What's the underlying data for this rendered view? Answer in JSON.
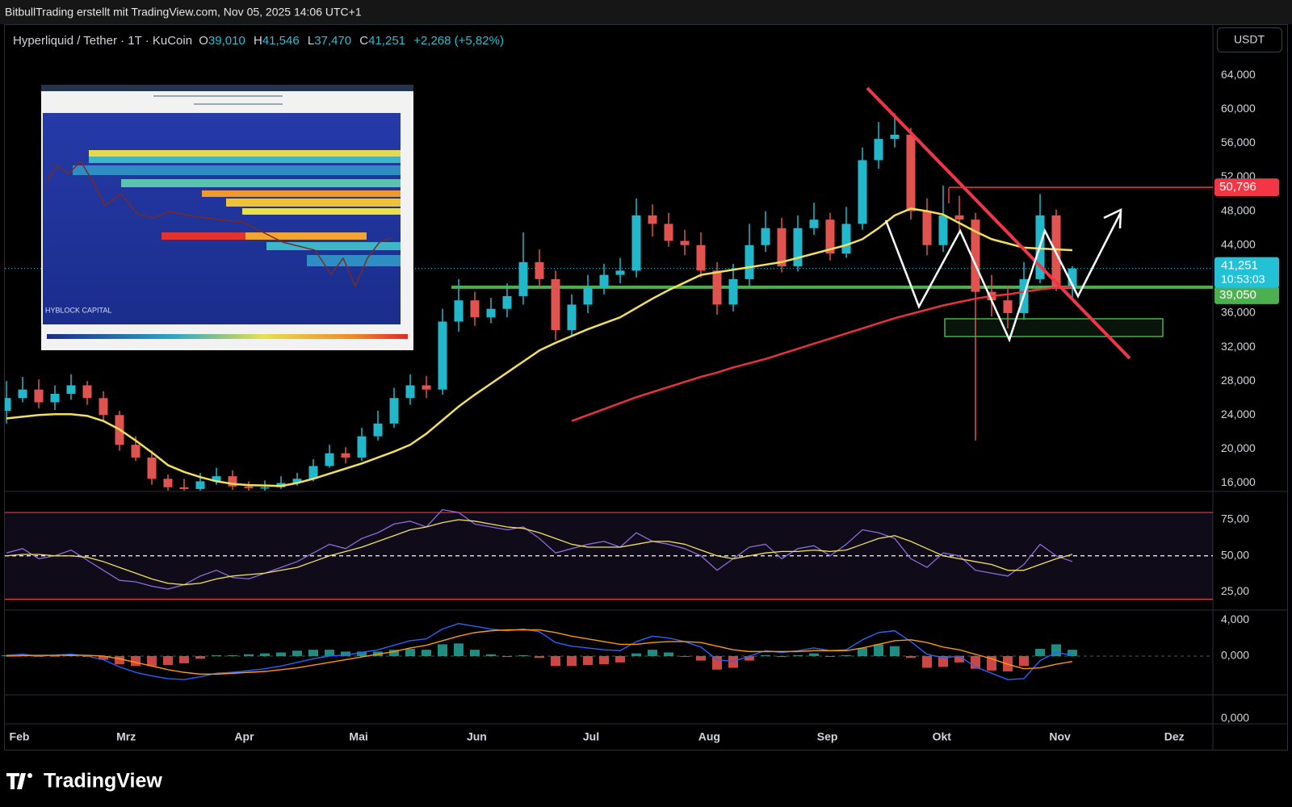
{
  "attribution": "BitbullTrading erstellt mit TradingView.com, Nov 05, 2025 14:06 UTC+1",
  "watermark": "TradingView",
  "inset": {
    "caption": "HYBLOCK CAPITAL"
  },
  "time_axis": {
    "labels": [
      "Feb",
      "Mrz",
      "Apr",
      "Mai",
      "Jun",
      "Jul",
      "Aug",
      "Sep",
      "Okt",
      "Nov",
      "Dez"
    ]
  },
  "chart_data": [
    {
      "type": "candlestick",
      "symbol": "Hyperliquid / Tether · 1T · KuCoin",
      "ohlc_header": [
        {
          "key": "O",
          "value": "39,010"
        },
        {
          "key": "H",
          "value": "41,546"
        },
        {
          "key": "L",
          "value": "37,470"
        },
        {
          "key": "C",
          "value": "41,251"
        }
      ],
      "change": "+2,268 (+5,82%)",
      "currency": "USDT",
      "up_color": "#22b8cc",
      "down_color": "#e0534f",
      "ylim": [
        15100,
        70000
      ],
      "yticks": [
        {
          "value": 16000,
          "label": "16,000"
        },
        {
          "value": 20000,
          "label": "20,000"
        },
        {
          "value": 24000,
          "label": "24,000"
        },
        {
          "value": 28000,
          "label": "28,000"
        },
        {
          "value": 32000,
          "label": "32,000"
        },
        {
          "value": 36000,
          "label": "36,000"
        },
        {
          "value": 40000,
          "label": "40,000"
        },
        {
          "value": 44000,
          "label": "44,000"
        },
        {
          "value": 48000,
          "label": "48,000"
        },
        {
          "value": 52000,
          "label": "52,000"
        },
        {
          "value": 56000,
          "label": "56,000"
        },
        {
          "value": 60000,
          "label": "60,000"
        },
        {
          "value": 64000,
          "label": "64,000"
        }
      ],
      "grid": false,
      "open": [
        24500,
        26000,
        27000,
        25500,
        26500,
        27500,
        26000,
        24000,
        20500,
        19000,
        16500,
        15500,
        15300,
        16200,
        16800,
        15600,
        15400,
        15500,
        16000,
        16500,
        18000,
        19500,
        19000,
        21500,
        23000,
        26000,
        27500,
        27000,
        35000,
        37500,
        35500,
        36500,
        38000,
        42000,
        40000,
        34000,
        37000,
        39000,
        40500,
        41000,
        47500,
        46500,
        44500,
        44000,
        41000,
        37000,
        40000,
        44000,
        46000,
        41500,
        46000,
        47000,
        43000,
        46500,
        54000,
        56500,
        57000,
        48000,
        44000,
        47500,
        47000,
        38500,
        37500,
        36000,
        40000,
        47500,
        39010
      ],
      "high": [
        28000,
        28500,
        28200,
        27500,
        28800,
        28000,
        26800,
        24500,
        21500,
        19800,
        17000,
        16500,
        17200,
        17800,
        17500,
        16200,
        16300,
        16800,
        17200,
        18800,
        20500,
        20200,
        22500,
        24500,
        27200,
        28800,
        28600,
        36500,
        40000,
        38500,
        37800,
        39500,
        45500,
        43500,
        41000,
        38200,
        40500,
        41800,
        42500,
        49500,
        48800,
        47800,
        45800,
        45500,
        42000,
        41800,
        46500,
        48000,
        47200,
        47500,
        49000,
        47800,
        48500,
        55500,
        58500,
        59500,
        57800,
        49500,
        51000,
        49800,
        47800,
        40500,
        39200,
        42000,
        50000,
        48200,
        41546
      ],
      "low": [
        23000,
        25500,
        24800,
        24600,
        25800,
        25200,
        23200,
        19800,
        18600,
        15800,
        15000,
        14800,
        15000,
        15800,
        15200,
        15000,
        14900,
        15300,
        15700,
        16200,
        17800,
        18300,
        18600,
        21000,
        22500,
        25200,
        26000,
        26400,
        33800,
        34500,
        34800,
        35500,
        37000,
        39000,
        32800,
        33200,
        36000,
        38200,
        39500,
        40200,
        45000,
        43800,
        42800,
        40200,
        35800,
        36200,
        39200,
        43200,
        40800,
        40900,
        45200,
        42200,
        42500,
        45800,
        53000,
        55500,
        47000,
        42800,
        43200,
        45800,
        21000,
        35600,
        34200,
        35200,
        39500,
        38600,
        37470
      ],
      "close": [
        26000,
        27000,
        25500,
        26500,
        27500,
        26000,
        24000,
        20500,
        19000,
        16500,
        15500,
        15300,
        16200,
        16800,
        15600,
        15400,
        15500,
        16000,
        16500,
        18000,
        19500,
        19000,
        21500,
        23000,
        26000,
        27500,
        27000,
        35000,
        37500,
        35500,
        36500,
        38000,
        42000,
        40000,
        34000,
        37000,
        39000,
        40500,
        41000,
        47500,
        46500,
        44500,
        44000,
        41000,
        37000,
        40000,
        44000,
        46000,
        41500,
        46000,
        47000,
        43000,
        46500,
        54000,
        56500,
        57000,
        48000,
        44000,
        47500,
        47000,
        38500,
        37500,
        36000,
        40000,
        47500,
        39010,
        41251
      ],
      "overlays": [
        {
          "color": "#f3e05a",
          "values": [
            23600,
            23800,
            24000,
            24100,
            24100,
            23900,
            23300,
            22300,
            21000,
            19600,
            18100,
            17300,
            16700,
            16200,
            15900,
            15750,
            15700,
            15650,
            16000,
            16500,
            17100,
            17700,
            18300,
            19000,
            19700,
            20500,
            21800,
            23400,
            25000,
            26400,
            27700,
            29000,
            30300,
            31600,
            32500,
            33300,
            34100,
            34800,
            35500,
            36600,
            37700,
            38700,
            39600,
            40500,
            40800,
            41100,
            41400,
            41700,
            42000,
            42500,
            43000,
            43500,
            44000,
            44700,
            46000,
            47500,
            48300,
            48000,
            47600,
            46600,
            45600,
            44700,
            44200,
            43700,
            43600,
            43500,
            43400
          ]
        },
        {
          "color": "#e8333f",
          "values": [
            null,
            null,
            null,
            null,
            null,
            null,
            null,
            null,
            null,
            null,
            null,
            null,
            null,
            null,
            null,
            null,
            null,
            null,
            null,
            null,
            null,
            null,
            null,
            null,
            null,
            null,
            null,
            null,
            null,
            null,
            null,
            null,
            null,
            null,
            null,
            23300,
            24000,
            24700,
            25400,
            26100,
            26700,
            27300,
            27900,
            28500,
            29000,
            29600,
            30100,
            30600,
            31200,
            31800,
            32400,
            33000,
            33600,
            34200,
            34800,
            35400,
            35900,
            36400,
            36900,
            37300,
            37700,
            38000,
            38200,
            38500,
            38800,
            39000,
            39100
          ]
        }
      ],
      "price_lines": [
        {
          "value": 50796,
          "label": "50,796",
          "color": "#f23645"
        },
        {
          "value": 39050,
          "label": "39,050",
          "color": "#4caf50"
        }
      ],
      "last_price": {
        "value": 41251,
        "label": "41,251",
        "countdown": "10:53:03",
        "color": "#22c1d6"
      }
    },
    {
      "type": "rsi",
      "ylim": [
        13,
        94
      ],
      "yticks": [
        {
          "value": 25,
          "label": "25,00"
        },
        {
          "value": 50,
          "label": "50,00"
        },
        {
          "value": 75,
          "label": "75,00"
        }
      ],
      "bands": [
        80,
        20
      ],
      "band_color": "#f23645",
      "midline": 50,
      "series": [
        {
          "color": "#8c6ad8",
          "values": [
            52,
            55,
            48,
            50,
            54,
            47,
            40,
            33,
            32,
            29,
            27,
            30,
            36,
            40,
            35,
            34,
            38,
            42,
            46,
            52,
            58,
            55,
            62,
            66,
            72,
            74,
            70,
            82,
            80,
            72,
            70,
            68,
            70,
            62,
            52,
            55,
            58,
            60,
            56,
            66,
            60,
            58,
            55,
            50,
            40,
            48,
            56,
            58,
            48,
            55,
            57,
            50,
            58,
            68,
            66,
            62,
            48,
            42,
            52,
            50,
            40,
            38,
            36,
            44,
            58,
            50,
            46
          ]
        },
        {
          "color": "#f3e05a",
          "values": [
            50,
            51,
            51,
            50,
            50,
            49,
            46,
            42,
            38,
            34,
            31,
            30,
            31,
            34,
            36,
            37,
            38,
            40,
            42,
            46,
            50,
            53,
            56,
            60,
            64,
            68,
            70,
            73,
            75,
            74,
            72,
            70,
            69,
            66,
            62,
            58,
            56,
            56,
            56,
            58,
            60,
            60,
            58,
            54,
            50,
            48,
            50,
            52,
            53,
            53,
            54,
            53,
            54,
            58,
            62,
            64,
            60,
            55,
            50,
            48,
            46,
            44,
            40,
            40,
            44,
            48,
            51
          ]
        }
      ]
    },
    {
      "type": "macd",
      "ylim": [
        -4200,
        5000
      ],
      "yticks": [
        {
          "value": 0,
          "label": "0,000"
        },
        {
          "value": 4000,
          "label": "4,000"
        }
      ],
      "baseline": 0,
      "series": [
        {
          "color": "#2962ff",
          "values": [
            100,
            200,
            0,
            100,
            200,
            0,
            -400,
            -1200,
            -1800,
            -2200,
            -2500,
            -2600,
            -2300,
            -1900,
            -1800,
            -1600,
            -1400,
            -1100,
            -700,
            -300,
            0,
            100,
            400,
            700,
            1200,
            1700,
            1900,
            3000,
            3600,
            3300,
            3000,
            2800,
            3000,
            2700,
            1500,
            1100,
            900,
            700,
            600,
            1600,
            2200,
            2000,
            1600,
            1000,
            -400,
            -600,
            0,
            600,
            400,
            600,
            900,
            600,
            700,
            1800,
            2600,
            2800,
            1600,
            200,
            -200,
            0,
            -1200,
            -1900,
            -2600,
            -2500,
            -500,
            400,
            100
          ]
        },
        {
          "color": "#ff9800",
          "values": [
            0,
            50,
            80,
            80,
            100,
            80,
            0,
            -300,
            -700,
            -1100,
            -1500,
            -1800,
            -2000,
            -2000,
            -1900,
            -1800,
            -1700,
            -1500,
            -1300,
            -1000,
            -700,
            -400,
            -100,
            200,
            500,
            900,
            1200,
            1700,
            2200,
            2600,
            2800,
            2900,
            2900,
            2900,
            2600,
            2200,
            1900,
            1600,
            1300,
            1300,
            1500,
            1600,
            1600,
            1500,
            1100,
            700,
            500,
            500,
            500,
            500,
            600,
            600,
            600,
            900,
            1300,
            1700,
            1800,
            1500,
            1000,
            700,
            200,
            -300,
            -900,
            -1400,
            -1300,
            -900,
            -600
          ]
        }
      ],
      "histogram": {
        "up_color": "#26a69a",
        "down_color": "#ef5350",
        "values": [
          100,
          150,
          -80,
          20,
          100,
          -80,
          -400,
          -900,
          -1100,
          -1100,
          -1000,
          -800,
          -300,
          100,
          100,
          200,
          300,
          400,
          600,
          700,
          700,
          500,
          500,
          500,
          700,
          800,
          700,
          1300,
          1400,
          700,
          200,
          -100,
          100,
          -200,
          -1100,
          -1100,
          -1000,
          -900,
          -700,
          300,
          700,
          400,
          0,
          -500,
          -1500,
          -1300,
          -500,
          100,
          -100,
          100,
          300,
          0,
          100,
          900,
          1300,
          1100,
          -200,
          -1300,
          -1200,
          -700,
          -1400,
          -1600,
          -1700,
          -1100,
          800,
          1300,
          700
        ]
      }
    },
    {
      "type": "indicator",
      "ylim": [
        -1,
        5
      ],
      "yticks": [
        {
          "value": 0,
          "label": "0,000"
        }
      ]
    }
  ]
}
